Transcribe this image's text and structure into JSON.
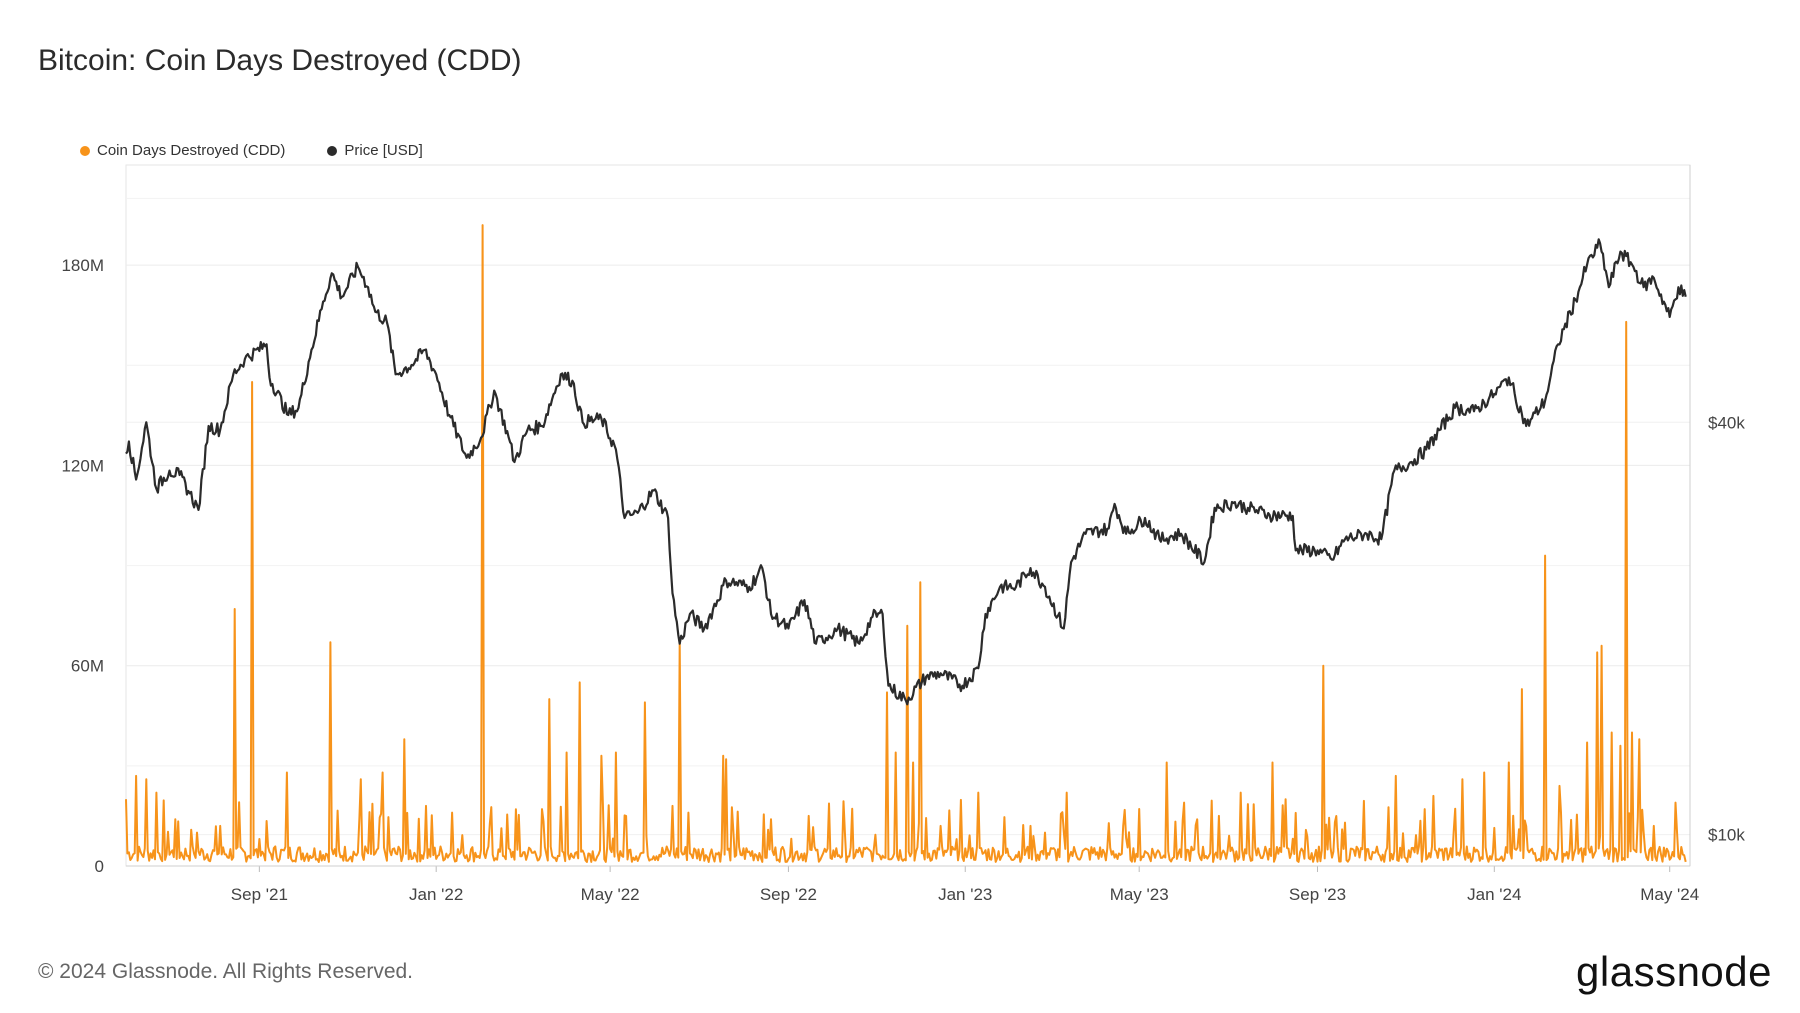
{
  "header": {
    "title": "Bitcoin: Coin Days Destroyed (CDD)"
  },
  "legend": [
    {
      "label": "Coin Days Destroyed (CDD)",
      "color": "#f7931a"
    },
    {
      "label": "Price [USD]",
      "color": "#2b2b2b"
    }
  ],
  "footer": {
    "copyright": "© 2024 Glassnode. All Rights Reserved.",
    "logo": "glassnode"
  },
  "chart_data": {
    "type": "line",
    "title": "Bitcoin: Coin Days Destroyed (CDD)",
    "x_range": [
      "2021-06-01",
      "2024-05-15"
    ],
    "x_ticks": [
      {
        "label": "Sep '21",
        "date": "2021-09-01"
      },
      {
        "label": "Jan '22",
        "date": "2022-01-01"
      },
      {
        "label": "May '22",
        "date": "2022-05-01"
      },
      {
        "label": "Sep '22",
        "date": "2022-09-01"
      },
      {
        "label": "Jan '23",
        "date": "2023-01-01"
      },
      {
        "label": "May '23",
        "date": "2023-05-01"
      },
      {
        "label": "Sep '23",
        "date": "2023-09-01"
      },
      {
        "label": "Jan '24",
        "date": "2024-01-01"
      },
      {
        "label": "May '24",
        "date": "2024-05-01"
      }
    ],
    "left_axis": {
      "ylim": [
        0,
        210000000
      ],
      "ticks": [
        {
          "label": "0",
          "value": 0
        },
        {
          "label": "60M",
          "value": 60000000
        },
        {
          "label": "120M",
          "value": 120000000
        },
        {
          "label": "180M",
          "value": 180000000
        }
      ]
    },
    "right_axis": {
      "scale": "log",
      "ylim": [
        9000,
        95000
      ],
      "ticks": [
        {
          "label": "$10k",
          "value": 10000
        },
        {
          "label": "$40k",
          "value": 40000
        }
      ]
    },
    "grid": true,
    "legend_position": "top-left",
    "series": [
      {
        "name": "Coin Days Destroyed (CDD)",
        "axis": "left",
        "style": "line",
        "color": "#f7931a",
        "baseline": 4000000,
        "spikes": [
          [
            "2021-06-01",
            20000000
          ],
          [
            "2021-06-08",
            27000000
          ],
          [
            "2021-06-15",
            26000000
          ],
          [
            "2021-06-22",
            22000000
          ],
          [
            "2021-07-05",
            14000000
          ],
          [
            "2021-07-20",
            10000000
          ],
          [
            "2021-08-05",
            12000000
          ],
          [
            "2021-08-15",
            77000000
          ],
          [
            "2021-08-27",
            145000000
          ],
          [
            "2021-09-20",
            28000000
          ],
          [
            "2021-10-20",
            67000000
          ],
          [
            "2021-11-10",
            26000000
          ],
          [
            "2021-11-25",
            28000000
          ],
          [
            "2021-12-10",
            38000000
          ],
          [
            "2021-12-25",
            18000000
          ],
          [
            "2022-01-12",
            16000000
          ],
          [
            "2022-02-02",
            192000000
          ],
          [
            "2022-02-25",
            17000000
          ],
          [
            "2022-03-20",
            50000000
          ],
          [
            "2022-04-01",
            34000000
          ],
          [
            "2022-04-10",
            55000000
          ],
          [
            "2022-04-25",
            33000000
          ],
          [
            "2022-05-05",
            34000000
          ],
          [
            "2022-05-12",
            15000000
          ],
          [
            "2022-05-25",
            49000000
          ],
          [
            "2022-06-13",
            18000000
          ],
          [
            "2022-06-18",
            67000000
          ],
          [
            "2022-06-24",
            16000000
          ],
          [
            "2022-07-18",
            33000000
          ],
          [
            "2022-07-20",
            32000000
          ],
          [
            "2022-08-20",
            14000000
          ],
          [
            "2022-09-15",
            15000000
          ],
          [
            "2022-10-10",
            10000000
          ],
          [
            "2022-11-08",
            52000000
          ],
          [
            "2022-11-14",
            34000000
          ],
          [
            "2022-11-22",
            72000000
          ],
          [
            "2022-11-26",
            31000000
          ],
          [
            "2022-12-01",
            85000000
          ],
          [
            "2022-12-15",
            12000000
          ],
          [
            "2023-01-10",
            22000000
          ],
          [
            "2023-02-15",
            12000000
          ],
          [
            "2023-03-12",
            22000000
          ],
          [
            "2023-04-20",
            12000000
          ],
          [
            "2023-05-20",
            31000000
          ],
          [
            "2023-06-10",
            14000000
          ],
          [
            "2023-06-25",
            15000000
          ],
          [
            "2023-07-10",
            22000000
          ],
          [
            "2023-08-01",
            31000000
          ],
          [
            "2023-08-10",
            20000000
          ],
          [
            "2023-09-05",
            60000000
          ],
          [
            "2023-09-20",
            13000000
          ],
          [
            "2023-10-25",
            27000000
          ],
          [
            "2023-11-20",
            21000000
          ],
          [
            "2023-12-10",
            26000000
          ],
          [
            "2023-12-25",
            28000000
          ],
          [
            "2024-01-11",
            31000000
          ],
          [
            "2024-01-20",
            53000000
          ],
          [
            "2024-02-05",
            93000000
          ],
          [
            "2024-02-15",
            24000000
          ],
          [
            "2024-03-05",
            37000000
          ],
          [
            "2024-03-12",
            64000000
          ],
          [
            "2024-03-15",
            66000000
          ],
          [
            "2024-03-22",
            40000000
          ],
          [
            "2024-03-28",
            36000000
          ],
          [
            "2024-04-01",
            163000000
          ],
          [
            "2024-04-05",
            40000000
          ],
          [
            "2024-04-10",
            38000000
          ],
          [
            "2024-04-20",
            12000000
          ],
          [
            "2024-05-05",
            19000000
          ]
        ]
      },
      {
        "name": "Price [USD]",
        "axis": "right",
        "style": "line",
        "color": "#2b2b2b",
        "points": [
          [
            "2021-06-01",
            36000
          ],
          [
            "2021-06-03",
            37500
          ],
          [
            "2021-06-08",
            33000
          ],
          [
            "2021-06-15",
            40000
          ],
          [
            "2021-06-22",
            32000
          ],
          [
            "2021-07-01",
            34000
          ],
          [
            "2021-07-08",
            33500
          ],
          [
            "2021-07-15",
            31500
          ],
          [
            "2021-07-21",
            29800
          ],
          [
            "2021-07-28",
            39500
          ],
          [
            "2021-08-05",
            39000
          ],
          [
            "2021-08-14",
            47000
          ],
          [
            "2021-08-22",
            49500
          ],
          [
            "2021-09-06",
            52000
          ],
          [
            "2021-09-08",
            46500
          ],
          [
            "2021-09-21",
            41000
          ],
          [
            "2021-09-28",
            42000
          ],
          [
            "2021-10-05",
            49000
          ],
          [
            "2021-10-15",
            60000
          ],
          [
            "2021-10-21",
            66000
          ],
          [
            "2021-10-28",
            61000
          ],
          [
            "2021-11-08",
            67500
          ],
          [
            "2021-11-15",
            63000
          ],
          [
            "2021-11-20",
            58000
          ],
          [
            "2021-11-28",
            56000
          ],
          [
            "2021-12-04",
            47000
          ],
          [
            "2021-12-15",
            48500
          ],
          [
            "2021-12-24",
            51000
          ],
          [
            "2022-01-01",
            47000
          ],
          [
            "2022-01-10",
            41000
          ],
          [
            "2022-01-22",
            35500
          ],
          [
            "2022-02-01",
            38000
          ],
          [
            "2022-02-10",
            44500
          ],
          [
            "2022-02-20",
            38000
          ],
          [
            "2022-02-24",
            35000
          ],
          [
            "2022-03-05",
            39000
          ],
          [
            "2022-03-15",
            39500
          ],
          [
            "2022-03-28",
            47000
          ],
          [
            "2022-04-05",
            46000
          ],
          [
            "2022-04-12",
            40000
          ],
          [
            "2022-04-25",
            40500
          ],
          [
            "2022-05-05",
            36500
          ],
          [
            "2022-05-11",
            29000
          ],
          [
            "2022-05-20",
            29500
          ],
          [
            "2022-05-31",
            31800
          ],
          [
            "2022-06-10",
            29000
          ],
          [
            "2022-06-13",
            22500
          ],
          [
            "2022-06-18",
            19000
          ],
          [
            "2022-06-25",
            21000
          ],
          [
            "2022-07-05",
            20000
          ],
          [
            "2022-07-20",
            23500
          ],
          [
            "2022-08-05",
            23000
          ],
          [
            "2022-08-14",
            24500
          ],
          [
            "2022-08-20",
            21000
          ],
          [
            "2022-09-01",
            20000
          ],
          [
            "2022-09-12",
            22000
          ],
          [
            "2022-09-20",
            19000
          ],
          [
            "2022-10-05",
            20000
          ],
          [
            "2022-10-20",
            19000
          ],
          [
            "2022-10-29",
            20800
          ],
          [
            "2022-11-05",
            21000
          ],
          [
            "2022-11-09",
            16500
          ],
          [
            "2022-11-21",
            15700
          ],
          [
            "2022-12-05",
            17000
          ],
          [
            "2022-12-15",
            17200
          ],
          [
            "2022-12-30",
            16500
          ],
          [
            "2023-01-10",
            17500
          ],
          [
            "2023-01-15",
            21000
          ],
          [
            "2023-01-25",
            23000
          ],
          [
            "2023-02-05",
            23000
          ],
          [
            "2023-02-15",
            24500
          ],
          [
            "2023-02-25",
            23000
          ],
          [
            "2023-03-10",
            20000
          ],
          [
            "2023-03-15",
            25000
          ],
          [
            "2023-03-25",
            27500
          ],
          [
            "2023-04-10",
            28000
          ],
          [
            "2023-04-14",
            30400
          ],
          [
            "2023-04-22",
            27500
          ],
          [
            "2023-05-05",
            29000
          ],
          [
            "2023-05-15",
            27000
          ],
          [
            "2023-05-30",
            27500
          ],
          [
            "2023-06-15",
            25000
          ],
          [
            "2023-06-22",
            30000
          ],
          [
            "2023-07-05",
            30500
          ],
          [
            "2023-07-15",
            30000
          ],
          [
            "2023-07-30",
            29300
          ],
          [
            "2023-08-15",
            29200
          ],
          [
            "2023-08-17",
            26000
          ],
          [
            "2023-09-01",
            26000
          ],
          [
            "2023-09-11",
            25200
          ],
          [
            "2023-09-20",
            27000
          ],
          [
            "2023-10-05",
            27500
          ],
          [
            "2023-10-15",
            27000
          ],
          [
            "2023-10-24",
            34000
          ],
          [
            "2023-11-05",
            35000
          ],
          [
            "2023-11-15",
            36500
          ],
          [
            "2023-12-05",
            42000
          ],
          [
            "2023-12-18",
            41500
          ],
          [
            "2024-01-01",
            44000
          ],
          [
            "2024-01-11",
            46500
          ],
          [
            "2024-01-23",
            39500
          ],
          [
            "2024-02-05",
            43000
          ],
          [
            "2024-02-14",
            52000
          ],
          [
            "2024-02-28",
            62000
          ],
          [
            "2024-03-05",
            68000
          ],
          [
            "2024-03-14",
            73000
          ],
          [
            "2024-03-20",
            63000
          ],
          [
            "2024-03-28",
            71000
          ],
          [
            "2024-04-05",
            68000
          ],
          [
            "2024-04-13",
            63000
          ],
          [
            "2024-04-20",
            65000
          ],
          [
            "2024-05-01",
            57000
          ],
          [
            "2024-05-07",
            63000
          ],
          [
            "2024-05-12",
            61000
          ]
        ]
      }
    ]
  }
}
